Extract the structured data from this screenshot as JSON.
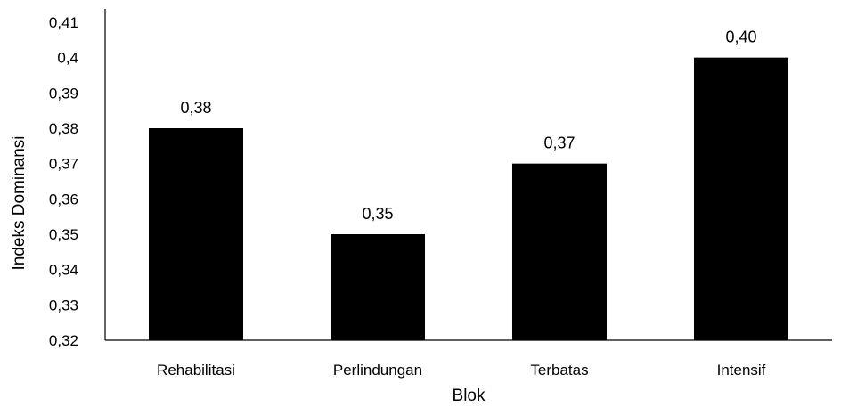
{
  "chart_data": {
    "type": "bar",
    "title": "",
    "xlabel": "Blok",
    "ylabel": "Indeks Dominansi",
    "categories": [
      "Rehabilitasi",
      "Perlindungan",
      "Terbatas",
      "Intensif"
    ],
    "values": [
      0.38,
      0.35,
      0.37,
      0.4
    ],
    "data_labels": [
      "0,38",
      "0,35",
      "0,37",
      "0,40"
    ],
    "ylim": [
      0.32,
      0.41
    ],
    "y_ticks": [
      0.32,
      0.33,
      0.34,
      0.35,
      0.36,
      0.37,
      0.38,
      0.39,
      0.4,
      0.41
    ],
    "y_tick_labels": [
      "0,32",
      "0,33",
      "0,34",
      "0,35",
      "0,36",
      "0,37",
      "0,38",
      "0,39",
      "0,4",
      "0,41"
    ],
    "grid": false,
    "legend": "none",
    "bar_color": "#000000"
  }
}
